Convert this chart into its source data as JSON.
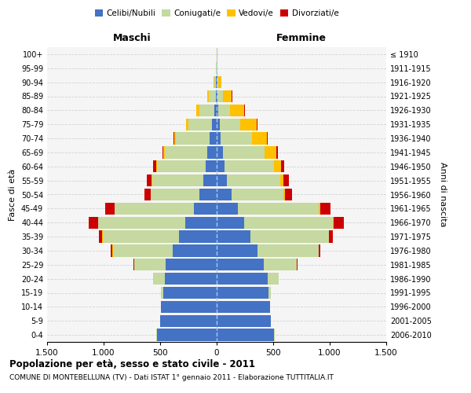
{
  "age_groups": [
    "0-4",
    "5-9",
    "10-14",
    "15-19",
    "20-24",
    "25-29",
    "30-34",
    "35-39",
    "40-44",
    "45-49",
    "50-54",
    "55-59",
    "60-64",
    "65-69",
    "70-74",
    "75-79",
    "80-84",
    "85-89",
    "90-94",
    "95-99",
    "100+"
  ],
  "birth_years": [
    "2006-2010",
    "2001-2005",
    "1996-2000",
    "1991-1995",
    "1986-1990",
    "1981-1985",
    "1976-1980",
    "1971-1975",
    "1966-1970",
    "1961-1965",
    "1956-1960",
    "1951-1955",
    "1946-1950",
    "1941-1945",
    "1936-1940",
    "1931-1935",
    "1926-1930",
    "1921-1925",
    "1916-1920",
    "1911-1915",
    "≤ 1910"
  ],
  "male": {
    "celibe": [
      530,
      500,
      490,
      470,
      460,
      450,
      390,
      330,
      280,
      200,
      150,
      120,
      100,
      80,
      60,
      40,
      20,
      10,
      5,
      2,
      2
    ],
    "coniugato": [
      2,
      2,
      5,
      20,
      100,
      280,
      530,
      680,
      770,
      700,
      430,
      450,
      430,
      380,
      300,
      210,
      130,
      60,
      15,
      3,
      1
    ],
    "vedovo": [
      0,
      0,
      0,
      0,
      0,
      1,
      1,
      1,
      2,
      3,
      3,
      5,
      8,
      12,
      15,
      20,
      30,
      15,
      5,
      1,
      0
    ],
    "divorziato": [
      0,
      0,
      0,
      0,
      2,
      5,
      15,
      30,
      80,
      80,
      55,
      45,
      25,
      10,
      5,
      2,
      1,
      0,
      0,
      0,
      0
    ]
  },
  "female": {
    "nubile": [
      510,
      480,
      470,
      460,
      450,
      420,
      360,
      300,
      240,
      185,
      130,
      90,
      70,
      55,
      35,
      25,
      15,
      10,
      5,
      2,
      2
    ],
    "coniugata": [
      2,
      2,
      5,
      20,
      100,
      290,
      540,
      690,
      790,
      720,
      460,
      470,
      440,
      370,
      280,
      180,
      100,
      45,
      10,
      2,
      1
    ],
    "vedova": [
      0,
      0,
      0,
      0,
      0,
      1,
      2,
      3,
      5,
      10,
      15,
      30,
      60,
      100,
      130,
      150,
      130,
      80,
      30,
      5,
      1
    ],
    "divorziata": [
      0,
      0,
      0,
      0,
      2,
      6,
      18,
      35,
      90,
      90,
      60,
      50,
      30,
      15,
      8,
      3,
      2,
      1,
      0,
      0,
      0
    ]
  },
  "colors": {
    "celibe": "#4472c4",
    "coniugato": "#c5d9a0",
    "vedovo": "#ffc000",
    "divorziato": "#cc0000"
  },
  "xlim": 1500,
  "xticks": [
    -1500,
    -1000,
    -500,
    0,
    500,
    1000,
    1500
  ],
  "xtick_labels": [
    "1.500",
    "1.000",
    "500",
    "0",
    "500",
    "1.000",
    "1.500"
  ],
  "title": "Popolazione per età, sesso e stato civile - 2011",
  "subtitle": "COMUNE DI MONTEBELLUNA (TV) - Dati ISTAT 1° gennaio 2011 - Elaborazione TUTTITALIA.IT",
  "ylabel": "Fasce di età",
  "ylabel2": "Anni di nascita",
  "legend_labels": [
    "Celibi/Nubili",
    "Coniugati/e",
    "Vedovi/e",
    "Divorziati/e"
  ],
  "maschi_label": "Maschi",
  "femmine_label": "Femmine",
  "background_color": "#f5f5f5"
}
